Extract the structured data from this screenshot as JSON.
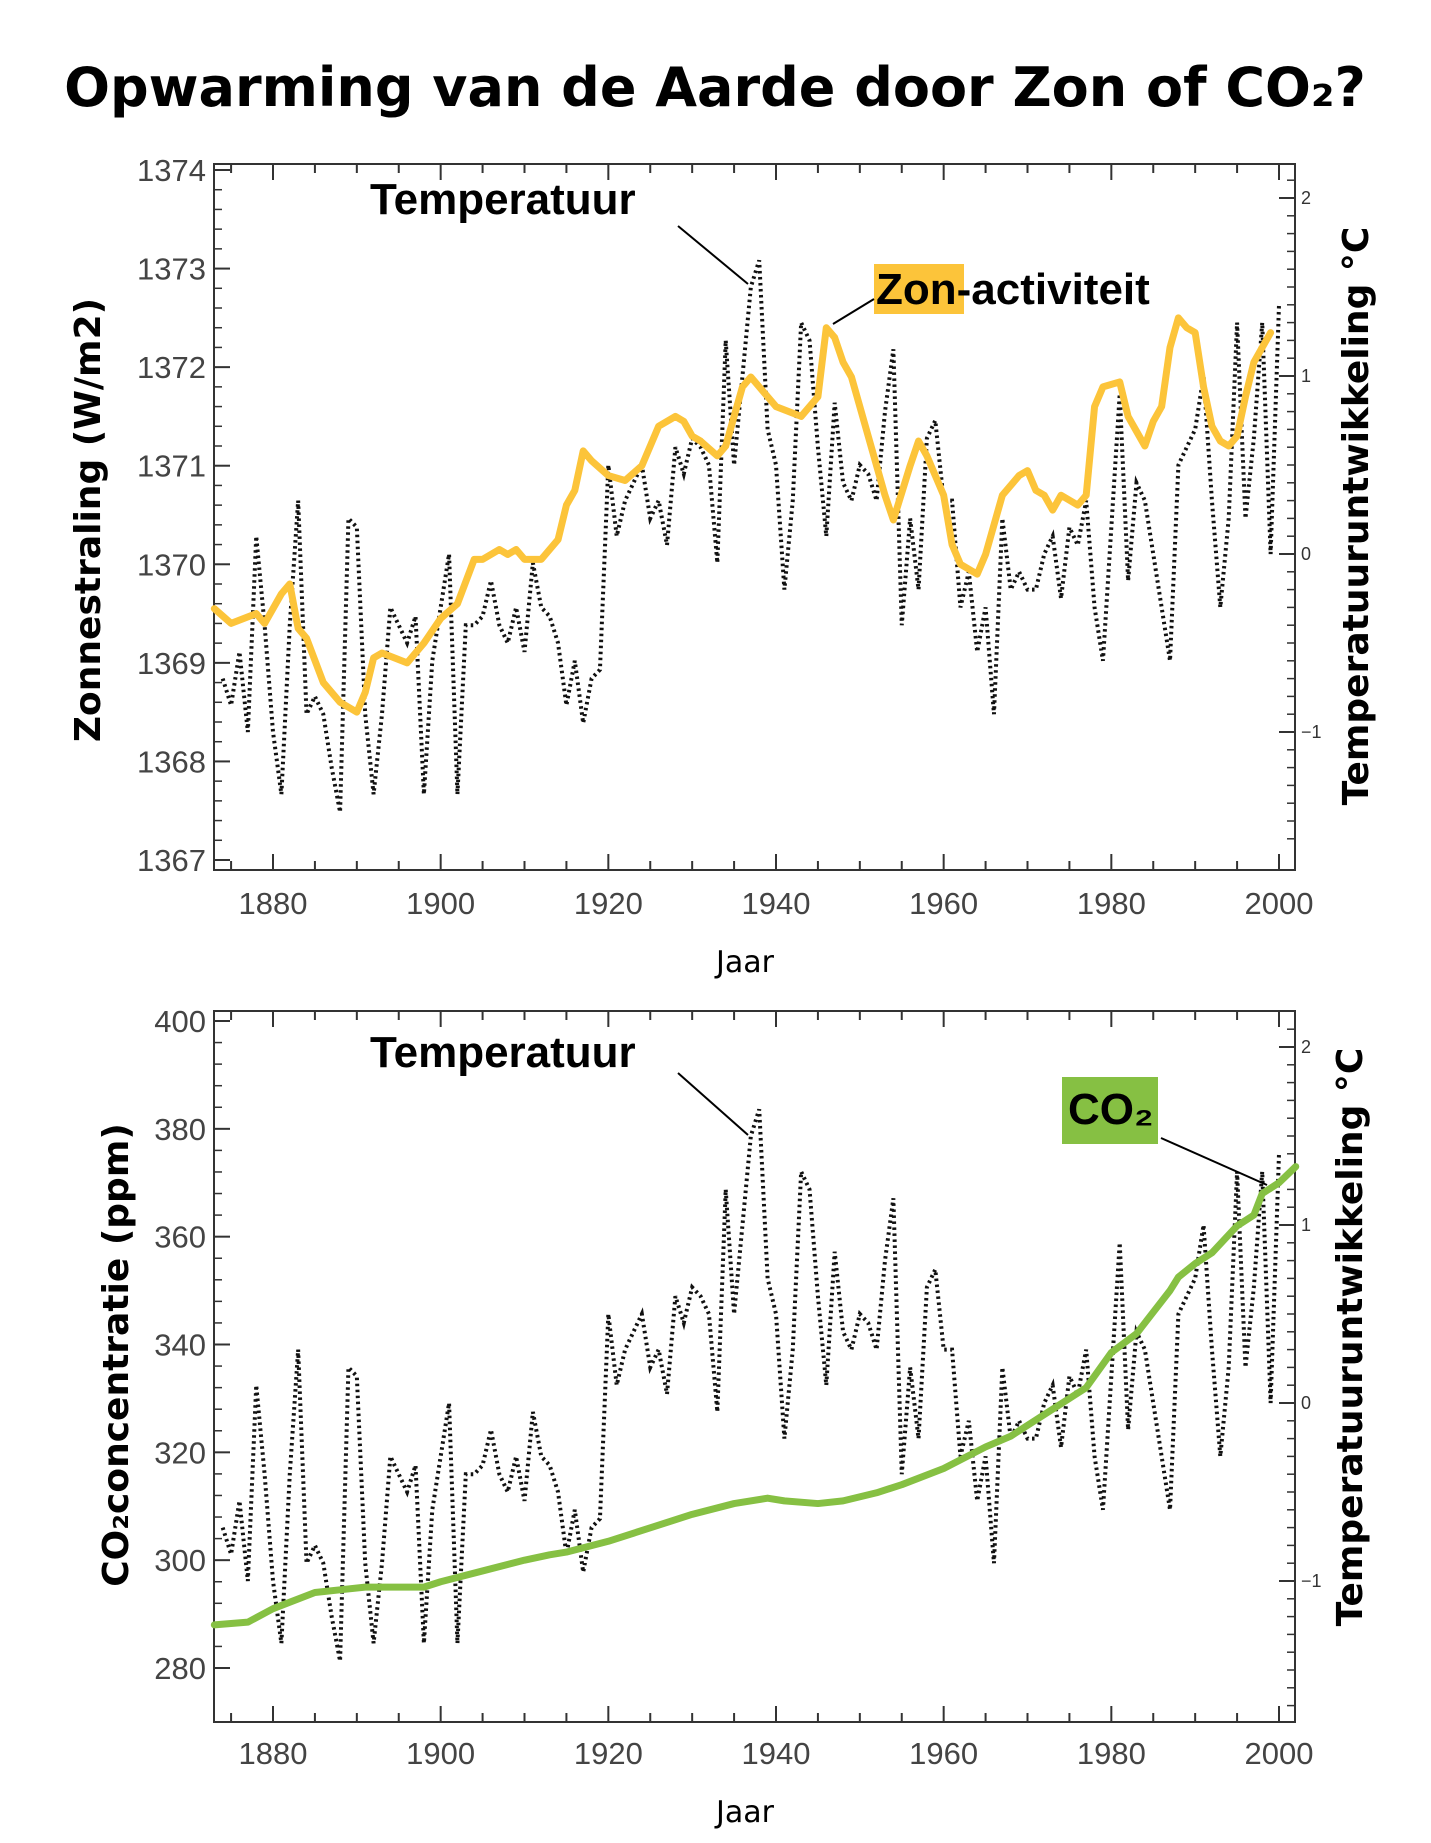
{
  "title": "Opwarming van de Aarde door Zon of CO₂?",
  "chart_data": [
    {
      "type": "line",
      "xlabel": "Jaar",
      "ylabel": "Zonnestraling (W/m2)",
      "y2label": "Temperatuuruntwikkeling °C",
      "xlim": [
        1873,
        2002
      ],
      "ylim": [
        1367,
        1374
      ],
      "y2lim": [
        -1.6,
        2.3
      ],
      "xticks": [
        1880,
        1900,
        1920,
        1940,
        1960,
        1980,
        2000
      ],
      "yticks": [
        1367,
        1368,
        1369,
        1370,
        1371,
        1372,
        1373,
        1374
      ],
      "y2ticks": [
        -1,
        0,
        1,
        2
      ],
      "annotations": {
        "temperature": "Temperatuur",
        "sun_highlight": "Zon",
        "sun_rest": "-activiteit"
      },
      "colors": {
        "sun": "#fcc43a",
        "temperature": "#111111"
      },
      "series": [
        {
          "name": "Zon-activiteit",
          "axis": "left",
          "x": [
            1873,
            1875,
            1878,
            1879,
            1881,
            1882,
            1883,
            1884,
            1886,
            1888,
            1890,
            1891,
            1892,
            1893,
            1896,
            1898,
            1900,
            1902,
            1904,
            1905,
            1907,
            1908,
            1909,
            1910,
            1912,
            1914,
            1915,
            1916,
            1917,
            1918,
            1920,
            1922,
            1924,
            1926,
            1928,
            1929,
            1930,
            1931,
            1933,
            1934,
            1936,
            1937,
            1938,
            1940,
            1943,
            1945,
            1946,
            1947,
            1948,
            1949,
            1950,
            1951,
            1953,
            1954,
            1956,
            1957,
            1958,
            1960,
            1961,
            1962,
            1964,
            1965,
            1967,
            1969,
            1970,
            1971,
            1972,
            1973,
            1974,
            1976,
            1977,
            1978,
            1979,
            1981,
            1982,
            1983,
            1984,
            1985,
            1986,
            1987,
            1988,
            1989,
            1990,
            1991,
            1992,
            1993,
            1994,
            1995,
            1996,
            1997,
            1998,
            1999
          ],
          "y": [
            1369.55,
            1369.4,
            1369.5,
            1369.4,
            1369.7,
            1369.8,
            1369.35,
            1369.25,
            1368.8,
            1368.6,
            1368.5,
            1368.7,
            1369.05,
            1369.1,
            1369.0,
            1369.2,
            1369.45,
            1369.6,
            1370.05,
            1370.05,
            1370.15,
            1370.1,
            1370.15,
            1370.05,
            1370.05,
            1370.25,
            1370.6,
            1370.75,
            1371.15,
            1371.05,
            1370.9,
            1370.85,
            1371.0,
            1371.4,
            1371.5,
            1371.45,
            1371.3,
            1371.25,
            1371.1,
            1371.2,
            1371.8,
            1371.9,
            1371.8,
            1371.6,
            1371.5,
            1371.7,
            1372.4,
            1372.3,
            1372.05,
            1371.9,
            1371.6,
            1371.3,
            1370.7,
            1370.45,
            1371.0,
            1371.25,
            1371.1,
            1370.7,
            1370.2,
            1370.0,
            1369.9,
            1370.1,
            1370.7,
            1370.9,
            1370.95,
            1370.75,
            1370.7,
            1370.55,
            1370.7,
            1370.6,
            1370.7,
            1371.6,
            1371.8,
            1371.85,
            1371.5,
            1371.35,
            1371.2,
            1371.45,
            1371.6,
            1372.2,
            1372.5,
            1372.4,
            1372.35,
            1371.8,
            1371.4,
            1371.25,
            1371.2,
            1371.3,
            1371.7,
            1372.05,
            1372.2,
            1372.35
          ]
        },
        {
          "name": "Temperatuur",
          "axis": "right",
          "style": "dotted",
          "ref": "temperature"
        }
      ]
    },
    {
      "type": "line",
      "xlabel": "Jaar",
      "ylabel": "CO₂concentratie (ppm)",
      "y2label": "Temperatuuruntwikkeling °C",
      "xlim": [
        1873,
        2002
      ],
      "ylim": [
        270,
        400
      ],
      "y2lim": [
        -1.8,
        2.1
      ],
      "xticks": [
        1880,
        1900,
        1920,
        1940,
        1960,
        1980,
        2000
      ],
      "yticks": [
        280,
        300,
        320,
        340,
        360,
        380,
        400
      ],
      "y2ticks": [
        -1,
        0,
        1,
        2
      ],
      "annotations": {
        "temperature": "Temperatuur",
        "co2": "CO₂"
      },
      "colors": {
        "co2": "#86c043",
        "temperature": "#111111"
      },
      "series": [
        {
          "name": "CO₂",
          "axis": "left",
          "x": [
            1873,
            1877,
            1880,
            1885,
            1888,
            1891,
            1898,
            1900,
            1905,
            1910,
            1913,
            1915,
            1920,
            1925,
            1930,
            1935,
            1939,
            1941,
            1945,
            1948,
            1952,
            1955,
            1960,
            1965,
            1968,
            1972,
            1975,
            1977,
            1980,
            1983,
            1985,
            1987,
            1988,
            1990,
            1992,
            1995,
            1997,
            1998,
            2000,
            2002
          ],
          "y": [
            288,
            288.5,
            291,
            294,
            294.5,
            295,
            295,
            296,
            298,
            300,
            301,
            301.5,
            303.5,
            306,
            308.5,
            310.5,
            311.5,
            311,
            310.5,
            311,
            312.5,
            314,
            317,
            321,
            323,
            327,
            330,
            332,
            338.5,
            342,
            346,
            350,
            352.5,
            355,
            357,
            362,
            364,
            368,
            370,
            373
          ]
        },
        {
          "name": "Temperatuur",
          "axis": "right",
          "style": "dotted",
          "ref": "temperature"
        }
      ]
    }
  ],
  "temperature": {
    "x": [
      1874,
      1875,
      1876,
      1877,
      1878,
      1879,
      1880,
      1881,
      1882,
      1883,
      1884,
      1885,
      1886,
      1887,
      1888,
      1889,
      1890,
      1891,
      1892,
      1893,
      1894,
      1895,
      1896,
      1897,
      1898,
      1899,
      1900,
      1901,
      1902,
      1903,
      1904,
      1905,
      1906,
      1907,
      1908,
      1909,
      1910,
      1911,
      1912,
      1913,
      1914,
      1915,
      1916,
      1917,
      1918,
      1919,
      1920,
      1921,
      1922,
      1923,
      1924,
      1925,
      1926,
      1927,
      1928,
      1929,
      1930,
      1931,
      1932,
      1933,
      1934,
      1935,
      1936,
      1937,
      1938,
      1939,
      1940,
      1941,
      1942,
      1943,
      1944,
      1945,
      1946,
      1947,
      1948,
      1949,
      1950,
      1951,
      1952,
      1953,
      1954,
      1955,
      1956,
      1957,
      1958,
      1959,
      1960,
      1961,
      1962,
      1963,
      1964,
      1965,
      1966,
      1967,
      1968,
      1969,
      1970,
      1971,
      1972,
      1973,
      1974,
      1975,
      1976,
      1977,
      1978,
      1979,
      1980,
      1981,
      1982,
      1983,
      1984,
      1985,
      1986,
      1987,
      1988,
      1989,
      1990,
      1991,
      1992,
      1993,
      1994,
      1995,
      1996,
      1997,
      1998,
      1999,
      2000
    ],
    "y": [
      -0.7,
      -0.85,
      -0.55,
      -1.0,
      0.1,
      -0.4,
      -1.0,
      -1.35,
      -0.4,
      0.3,
      -0.9,
      -0.8,
      -0.9,
      -1.2,
      -1.45,
      0.2,
      0.15,
      -0.9,
      -1.35,
      -0.9,
      -0.3,
      -0.4,
      -0.5,
      -0.35,
      -1.35,
      -0.6,
      -0.3,
      0.0,
      -1.35,
      -0.4,
      -0.4,
      -0.35,
      -0.15,
      -0.4,
      -0.5,
      -0.3,
      -0.55,
      -0.05,
      -0.3,
      -0.35,
      -0.5,
      -0.85,
      -0.6,
      -0.95,
      -0.7,
      -0.65,
      0.5,
      0.1,
      0.3,
      0.4,
      0.5,
      0.2,
      0.3,
      0.05,
      0.6,
      0.45,
      0.65,
      0.6,
      0.5,
      -0.05,
      1.2,
      0.5,
      1.0,
      1.5,
      1.65,
      0.7,
      0.5,
      -0.2,
      0.3,
      1.3,
      1.2,
      0.6,
      0.1,
      0.85,
      0.4,
      0.3,
      0.5,
      0.45,
      0.3,
      0.8,
      1.15,
      -0.4,
      0.2,
      -0.2,
      0.65,
      0.75,
      0.3,
      0.3,
      -0.3,
      -0.1,
      -0.55,
      -0.3,
      -0.9,
      0.2,
      -0.2,
      -0.1,
      -0.2,
      -0.2,
      0.0,
      0.1,
      -0.25,
      0.15,
      0.05,
      0.3,
      -0.3,
      -0.6,
      0.15,
      0.9,
      -0.15,
      0.4,
      0.3,
      0.0,
      -0.3,
      -0.6,
      0.5,
      0.6,
      0.7,
      1.0,
      0.3,
      -0.3,
      0.2,
      1.3,
      0.2,
      0.65,
      1.3,
      0.0,
      1.4
    ]
  }
}
